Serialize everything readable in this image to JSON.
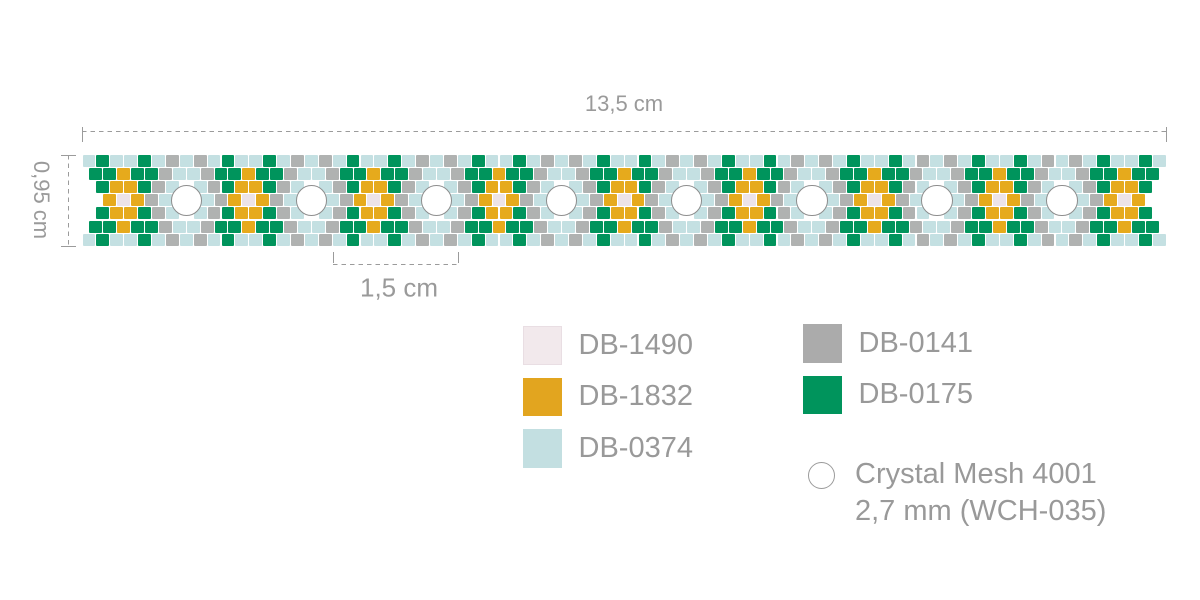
{
  "dimensions": {
    "width_label": "13,5 cm",
    "height_label": "0,95 cm",
    "repeat_label": "1,5 cm"
  },
  "legend": {
    "items": [
      {
        "code": "DB-1490",
        "color": "#f2e9ec"
      },
      {
        "code": "DB-1832",
        "color": "#e2a51f"
      },
      {
        "code": "DB-0374",
        "color": "#c3dfe1"
      },
      {
        "code": "DB-0141",
        "color": "#ababab"
      },
      {
        "code": "DB-0175",
        "color": "#00945c"
      },
      {
        "code": "Crystal Mesh 4001",
        "code_line2": "2,7 mm (WCH-035)"
      }
    ]
  },
  "pattern": {
    "bead_colors": {
      "B": "#c4e0e2",
      "G": "#00945c",
      "Y": "#e6aa1c",
      "A": "#b0b2b1",
      "W": "#ece3e8"
    },
    "bead_codes": {
      "B": "DB-0374",
      "G": "DB-0175",
      "Y": "DB-1832",
      "A": "DB-0141",
      "W": "DB-1490"
    },
    "repeats": 8,
    "rows": [
      {
        "grid": "A",
        "offset": 0,
        "prefix": "B",
        "unit": "GBBGBABAB",
        "suffix": "GBBGB"
      },
      {
        "grid": "B",
        "offset": 0,
        "prefix": "",
        "unit": "GGYGGABBA",
        "suffix": "GGYGG"
      },
      {
        "grid": "A",
        "offset": 1,
        "prefix": "",
        "unit": "GYYGAB.BA",
        "suffix": "GYYG"
      },
      {
        "grid": "B",
        "offset": 1,
        "prefix": "",
        "unit": "YWYAB..BA",
        "suffix": "YWY"
      },
      {
        "grid": "A",
        "offset": 1,
        "prefix": "",
        "unit": "GYYGAB.BA",
        "suffix": "GYYG"
      },
      {
        "grid": "B",
        "offset": 0,
        "prefix": "",
        "unit": "GGYGGABBA",
        "suffix": "GGYGG"
      },
      {
        "grid": "A",
        "offset": 0,
        "prefix": "B",
        "unit": "GBBGBABAB",
        "suffix": "GBBGB"
      }
    ],
    "crystals": {
      "count": 8,
      "label": "Crystal Mesh 4001 2,7 mm (WCH-035)"
    }
  }
}
